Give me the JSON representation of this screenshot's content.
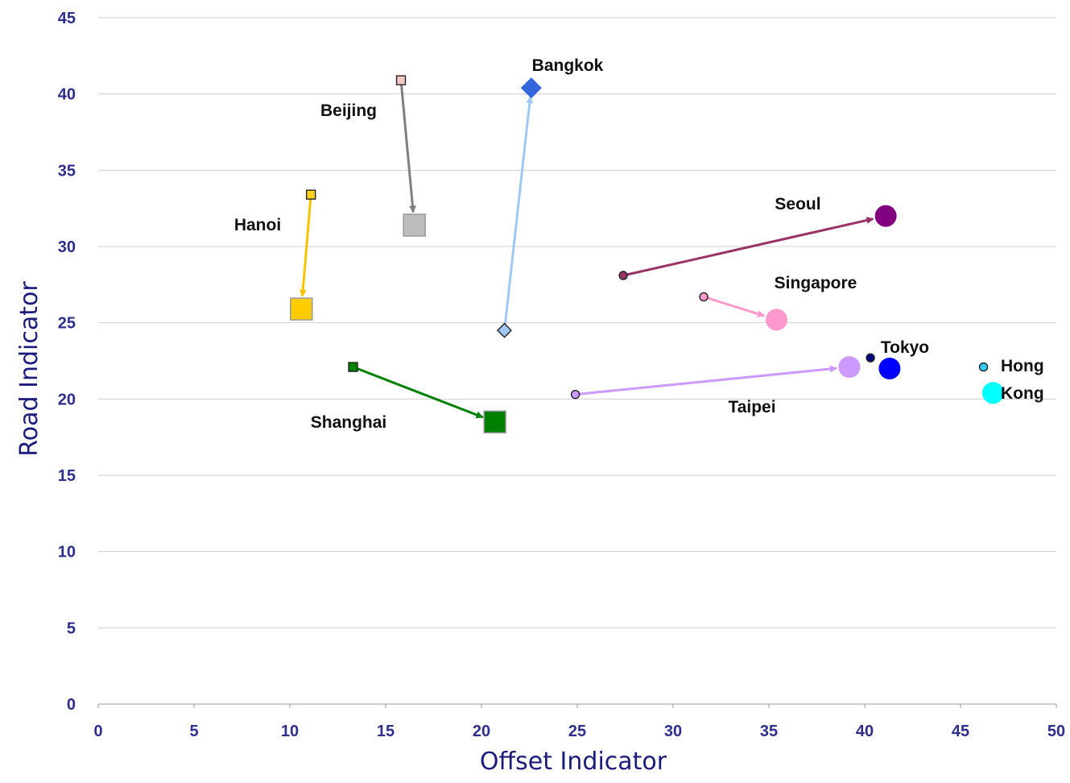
{
  "chart_data": {
    "type": "scatter",
    "xlabel": "Offset Indicator",
    "ylabel": "Road Indicator",
    "xlim": [
      0,
      50
    ],
    "ylim": [
      0,
      45
    ],
    "x_ticks": [
      "0",
      "5",
      "10",
      "15",
      "20",
      "25",
      "30",
      "35",
      "40",
      "45",
      "50"
    ],
    "y_ticks": [
      "0",
      "5",
      "10",
      "15",
      "20",
      "25",
      "30",
      "35",
      "40",
      "45"
    ],
    "grid": "horizontal",
    "series": [
      {
        "name": "Beijing",
        "label": "Beijing",
        "marker": "square",
        "from_color": "#f4c6c6",
        "to_color": "#bdbdbd",
        "arrow_color": "#7f7f7f",
        "from": [
          15.8,
          40.9
        ],
        "to": [
          16.5,
          31.4
        ]
      },
      {
        "name": "Bangkok",
        "label": "Bangkok",
        "marker": "diamond",
        "from_color": "#9fc8f4",
        "to_color": "#3366dd",
        "arrow_color": "#9fc8f4",
        "from": [
          21.2,
          24.5
        ],
        "to": [
          22.6,
          40.4
        ]
      },
      {
        "name": "Hanoi",
        "label": "Hanoi",
        "marker": "square",
        "from_color": "#ffd320",
        "to_color": "#ffcc00",
        "arrow_color": "#f5c400",
        "from": [
          11.1,
          33.4
        ],
        "to": [
          10.6,
          25.9
        ]
      },
      {
        "name": "Shanghai",
        "label": "Shanghai",
        "marker": "square",
        "from_color": "#008000",
        "to_color": "#008000",
        "arrow_color": "#008000",
        "from": [
          13.3,
          22.1
        ],
        "to": [
          20.7,
          18.5
        ]
      },
      {
        "name": "Seoul",
        "label": "Seoul",
        "marker": "circle",
        "from_color": "#993366",
        "to_color": "#800080",
        "arrow_color": "#993366",
        "from": [
          27.4,
          28.1
        ],
        "to": [
          41.1,
          32.0
        ]
      },
      {
        "name": "Singapore",
        "label": "Singapore",
        "marker": "circle",
        "from_color": "#ff99cc",
        "to_color": "#ff99cc",
        "arrow_color": "#ff99cc",
        "from": [
          31.6,
          26.7
        ],
        "to": [
          35.4,
          25.2
        ]
      },
      {
        "name": "Taipei",
        "label": "Taipei",
        "marker": "circle",
        "from_color": "#cc99ff",
        "to_color": "#cc99ff",
        "arrow_color": "#cc99ff",
        "from": [
          24.9,
          20.3
        ],
        "to": [
          39.2,
          22.1
        ]
      },
      {
        "name": "Tokyo",
        "label": "Tokyo",
        "marker": "circle",
        "from_color": "#000080",
        "to_color": "#0000ff",
        "arrow_color": null,
        "from": [
          40.3,
          22.7
        ],
        "to": [
          41.3,
          22.0
        ]
      },
      {
        "name": "Hong Kong",
        "label": "Hong\nKong",
        "marker": "circle",
        "from_color": "#33ccff",
        "to_color": "#00ffff",
        "arrow_color": null,
        "from": [
          46.2,
          22.1
        ],
        "to": [
          46.7,
          20.4
        ]
      }
    ]
  }
}
